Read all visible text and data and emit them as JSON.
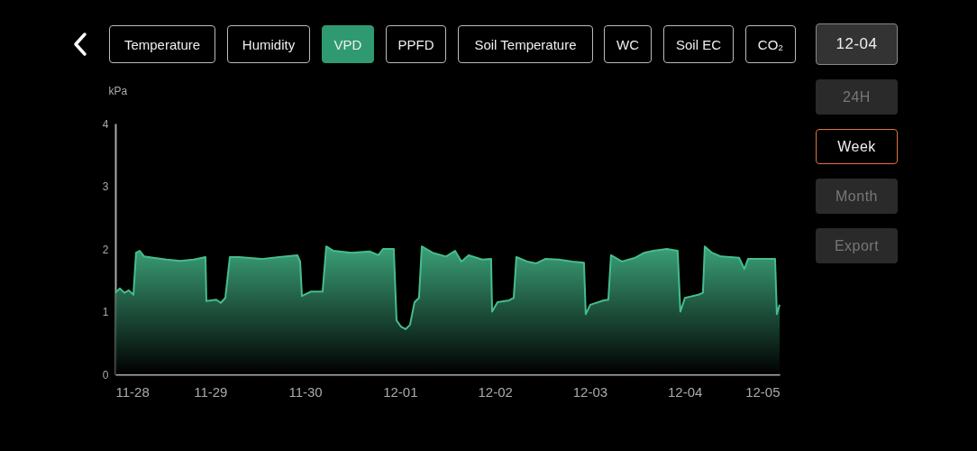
{
  "chart_data": {
    "type": "area",
    "ylabel": "kPa",
    "x": [
      "--11-28T00:00",
      "--11-28T01:08",
      "--11-28T02:17",
      "--11-28T03:24",
      "--11-28T04:34",
      "--11-28T05:14",
      "--11-28T06:09",
      "--11-28T07:18",
      "--11-28T09:35",
      "--11-28T12:59",
      "--11-28T16:25",
      "--11-28T19:49",
      "--11-28T22:48",
      "--11-28T23:01",
      "--11-29T01:32",
      "--11-29T02:40",
      "--11-29T03:49",
      "--11-29T04:57",
      "--11-29T07:13",
      "--11-29T12:55",
      "--11-29T17:28",
      "--11-29T22:02",
      "--11-29T22:44",
      "--11-29T23:11",
      "--11-30T01:28",
      "--11-30T04:25",
      "--11-30T05:20",
      "--11-30T07:09",
      "--11-30T11:43",
      "--11-30T16:16",
      "--11-30T18:33",
      "--11-30T19:41",
      "--11-30T22:25",
      "--11-30T23:07",
      "--12-01T00:14",
      "--12-01T01:24",
      "--12-01T02:31",
      "--12-01T03:40",
      "--12-01T04:48",
      "--12-01T05:30",
      "--12-01T08:14",
      "--12-01T11:38",
      "--12-01T13:55",
      "--12-01T15:32",
      "--12-01T17:21",
      "--12-01T20:46",
      "--12-01T23:02",
      "--12-01T23:17",
      "--12-02T00:39",
      "--12-02T03:36",
      "--12-02T04:45",
      "--12-02T05:25",
      "--12-02T08:10",
      "--12-02T10:26",
      "--12-02T12:43",
      "--12-02T16:08",
      "--12-02T19:34",
      "--12-02T22:31",
      "--12-02T22:58",
      "--12-03T00:07",
      "--12-03T03:32",
      "--12-03T04:41",
      "--12-03T05:21",
      "--12-03T08:05",
      "--12-03T11:30",
      "--12-03T13:47",
      "--12-03T16:05",
      "--12-03T19:29",
      "--12-03T22:13",
      "--12-03T22:54",
      "--12-04T00:03",
      "--12-04T03:27",
      "--12-04T04:36",
      "--12-04T05:04",
      "--12-04T06:53",
      "--12-04T09:10",
      "--12-04T13:44",
      "--12-04T15:06",
      "--12-04T16:00",
      "--12-04T19:25",
      "--12-04T22:51",
      "--12-04T23:18",
      "--12-05T00:00"
    ],
    "series": [
      {
        "color": "#45bd8d",
        "values": [
          1.3,
          1.37,
          1.3,
          1.34,
          1.27,
          1.94,
          1.97,
          1.88,
          1.86,
          1.83,
          1.81,
          1.83,
          1.87,
          1.17,
          1.19,
          1.14,
          1.22,
          1.87,
          1.87,
          1.84,
          1.87,
          1.9,
          1.8,
          1.25,
          1.32,
          1.32,
          2.04,
          1.97,
          1.94,
          1.96,
          1.9,
          2.0,
          2.0,
          0.86,
          0.76,
          0.72,
          0.79,
          1.15,
          1.22,
          2.04,
          1.94,
          1.88,
          1.97,
          1.8,
          1.9,
          1.83,
          1.84,
          1.0,
          1.15,
          1.18,
          1.22,
          1.87,
          1.8,
          1.77,
          1.84,
          1.83,
          1.8,
          1.78,
          0.96,
          1.11,
          1.18,
          1.19,
          1.9,
          1.8,
          1.86,
          1.94,
          1.97,
          2.0,
          1.97,
          1.0,
          1.22,
          1.27,
          1.3,
          2.04,
          1.94,
          1.88,
          1.86,
          1.68,
          1.84,
          1.84,
          1.84,
          0.96,
          1.11
        ]
      }
    ],
    "xlim": [
      "--11-28",
      "--12-05"
    ],
    "xticks": [
      {
        "value": "--11-28",
        "label": "11-28"
      },
      {
        "value": "--11-29",
        "label": "11-29"
      },
      {
        "value": "--11-30",
        "label": "11-30"
      },
      {
        "value": "--12-01",
        "label": "12-01"
      },
      {
        "value": "--12-02",
        "label": "12-02"
      },
      {
        "value": "--12-03",
        "label": "12-03"
      },
      {
        "value": "--12-04",
        "label": "12-04"
      },
      {
        "value": "--12-05",
        "label": "12-05"
      }
    ],
    "ylim": [
      0,
      4
    ],
    "yticks": [
      0,
      1,
      2,
      3,
      4
    ],
    "grid": false,
    "annotations": [
      "Temperature",
      "Humidity",
      "VPD",
      "PPFD",
      "Soil Temperature",
      "WC",
      "Soil EC",
      "CO₂",
      "12-04",
      "24H",
      "Week",
      "Month",
      "Export"
    ]
  }
}
